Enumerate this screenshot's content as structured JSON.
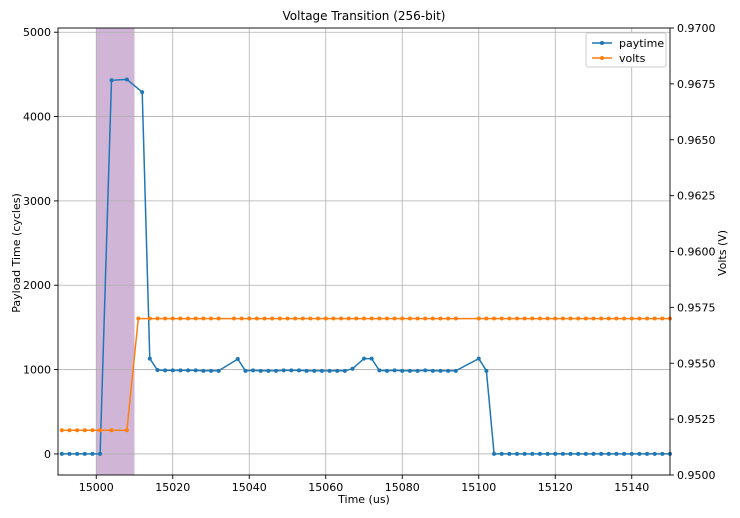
{
  "chart_data": {
    "type": "line",
    "title": "Voltage Transition (256-bit)",
    "xlabel": "Time (us)",
    "ylabel_left": "Payload Time (cycles)",
    "ylabel_right": "Volts (V)",
    "xlim": [
      14990,
      15150
    ],
    "ylim_left": [
      -250,
      5050
    ],
    "ylim_right": [
      0.95,
      0.97
    ],
    "x_ticks": [
      15000,
      15020,
      15040,
      15060,
      15080,
      15100,
      15120,
      15140
    ],
    "y_left_ticks": [
      0,
      1000,
      2000,
      3000,
      4000,
      5000
    ],
    "y_right_ticks": [
      0.95,
      0.9525,
      0.955,
      0.9575,
      0.96,
      0.9625,
      0.965,
      0.9675,
      0.97
    ],
    "y_right_tick_labels": [
      "0.9500",
      "0.9525",
      "0.9550",
      "0.9575",
      "0.9600",
      "0.9625",
      "0.9650",
      "0.9675",
      "0.9700"
    ],
    "grid": true,
    "legend_position": "top-right",
    "highlight_span": {
      "x_start": 15000,
      "x_end": 15010,
      "color": "#c8a8d0"
    },
    "series": [
      {
        "name": "paytime",
        "axis": "left",
        "color": "#1f77b4",
        "x": [
          14991,
          14993,
          14995,
          14997,
          14999,
          15001,
          15004,
          15008,
          15012,
          15014,
          15016,
          15018,
          15020,
          15022,
          15024,
          15026,
          15028,
          15030,
          15032,
          15037,
          15039,
          15041,
          15043,
          15045,
          15047,
          15049,
          15051,
          15053,
          15055,
          15057,
          15059,
          15061,
          15063,
          15065,
          15067,
          15070,
          15072,
          15074,
          15076,
          15078,
          15080,
          15082,
          15084,
          15086,
          15088,
          15090,
          15092,
          15094,
          15100,
          15102,
          15104,
          15106,
          15108,
          15110,
          15112,
          15114,
          15116,
          15118,
          15120,
          15122,
          15124,
          15126,
          15128,
          15130,
          15132,
          15134,
          15136,
          15138,
          15140,
          15142,
          15144,
          15146,
          15148,
          15150
        ],
        "y": [
          0,
          0,
          0,
          0,
          0,
          0,
          4430,
          4440,
          4290,
          1130,
          995,
          990,
          990,
          990,
          990,
          990,
          985,
          985,
          985,
          1125,
          985,
          990,
          985,
          985,
          985,
          990,
          990,
          990,
          985,
          985,
          985,
          985,
          985,
          985,
          1010,
          1130,
          1130,
          990,
          985,
          990,
          985,
          985,
          985,
          990,
          985,
          985,
          985,
          985,
          1130,
          985,
          0,
          0,
          0,
          0,
          0,
          0,
          0,
          0,
          0,
          0,
          0,
          0,
          0,
          0,
          0,
          0,
          0,
          0,
          0,
          0,
          0,
          0,
          0,
          0
        ]
      },
      {
        "name": "volts",
        "axis": "right",
        "color": "#ff7f0e",
        "x": [
          14991,
          14993,
          14995,
          14997,
          14999,
          15001,
          15004,
          15008,
          15011,
          15014,
          15016,
          15018,
          15020,
          15022,
          15024,
          15026,
          15028,
          15030,
          15032,
          15036,
          15038,
          15040,
          15042,
          15044,
          15046,
          15048,
          15050,
          15052,
          15054,
          15056,
          15058,
          15060,
          15062,
          15064,
          15066,
          15068,
          15070,
          15072,
          15074,
          15076,
          15078,
          15080,
          15082,
          15084,
          15086,
          15088,
          15090,
          15092,
          15094,
          15100,
          15102,
          15104,
          15106,
          15108,
          15110,
          15112,
          15114,
          15116,
          15118,
          15120,
          15122,
          15124,
          15126,
          15128,
          15130,
          15132,
          15134,
          15136,
          15138,
          15140,
          15142,
          15144,
          15146,
          15148,
          15150
        ],
        "y": [
          0.952,
          0.952,
          0.952,
          0.952,
          0.952,
          0.952,
          0.952,
          0.952,
          0.957,
          0.957,
          0.957,
          0.957,
          0.957,
          0.957,
          0.957,
          0.957,
          0.957,
          0.957,
          0.957,
          0.957,
          0.957,
          0.957,
          0.957,
          0.957,
          0.957,
          0.957,
          0.957,
          0.957,
          0.957,
          0.957,
          0.957,
          0.957,
          0.957,
          0.957,
          0.957,
          0.957,
          0.957,
          0.957,
          0.957,
          0.957,
          0.957,
          0.957,
          0.957,
          0.957,
          0.957,
          0.957,
          0.957,
          0.957,
          0.957,
          0.957,
          0.957,
          0.957,
          0.957,
          0.957,
          0.957,
          0.957,
          0.957,
          0.957,
          0.957,
          0.957,
          0.957,
          0.957,
          0.957,
          0.957,
          0.957,
          0.957,
          0.957,
          0.957,
          0.957,
          0.957,
          0.957,
          0.957,
          0.957,
          0.957,
          0.957
        ]
      }
    ]
  }
}
